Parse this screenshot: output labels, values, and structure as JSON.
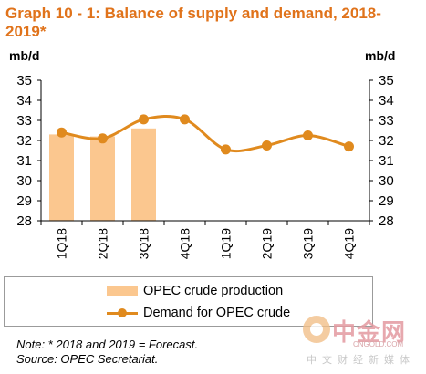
{
  "title": "Graph 10 - 1: Balance of supply and demand, 2018-2019*",
  "chart_data": {
    "type": "bar+line",
    "categories": [
      "1Q18",
      "2Q18",
      "3Q18",
      "4Q18",
      "1Q19",
      "2Q19",
      "3Q19",
      "4Q19"
    ],
    "series": [
      {
        "name": "OPEC crude production",
        "type": "bar",
        "values": [
          32.3,
          32.2,
          32.6,
          null,
          null,
          null,
          null,
          null
        ],
        "color": "#fbc78f"
      },
      {
        "name": "Demand for OPEC crude",
        "type": "line",
        "values": [
          32.4,
          32.1,
          33.05,
          33.05,
          31.55,
          31.75,
          32.25,
          31.7
        ],
        "color": "#e08a1e"
      }
    ],
    "ylabel_left": "mb/d",
    "ylabel_right": "mb/d",
    "ylim": [
      28,
      35
    ],
    "yticks": [
      "28",
      "29",
      "30",
      "31",
      "32",
      "33",
      "34",
      "35"
    ],
    "grid": false,
    "legend_position": "bottom"
  },
  "legend": {
    "bar_label": "OPEC crude production",
    "line_label": "Demand for OPEC crude"
  },
  "notes": {
    "line1": "Note: * 2018 and 2019 = Forecast.",
    "line2": "Source: OPEC Secretariat."
  },
  "watermark": {
    "text": "中金网",
    "sub": "CNGOLD.COM",
    "sub2": "中文财经新媒体"
  }
}
